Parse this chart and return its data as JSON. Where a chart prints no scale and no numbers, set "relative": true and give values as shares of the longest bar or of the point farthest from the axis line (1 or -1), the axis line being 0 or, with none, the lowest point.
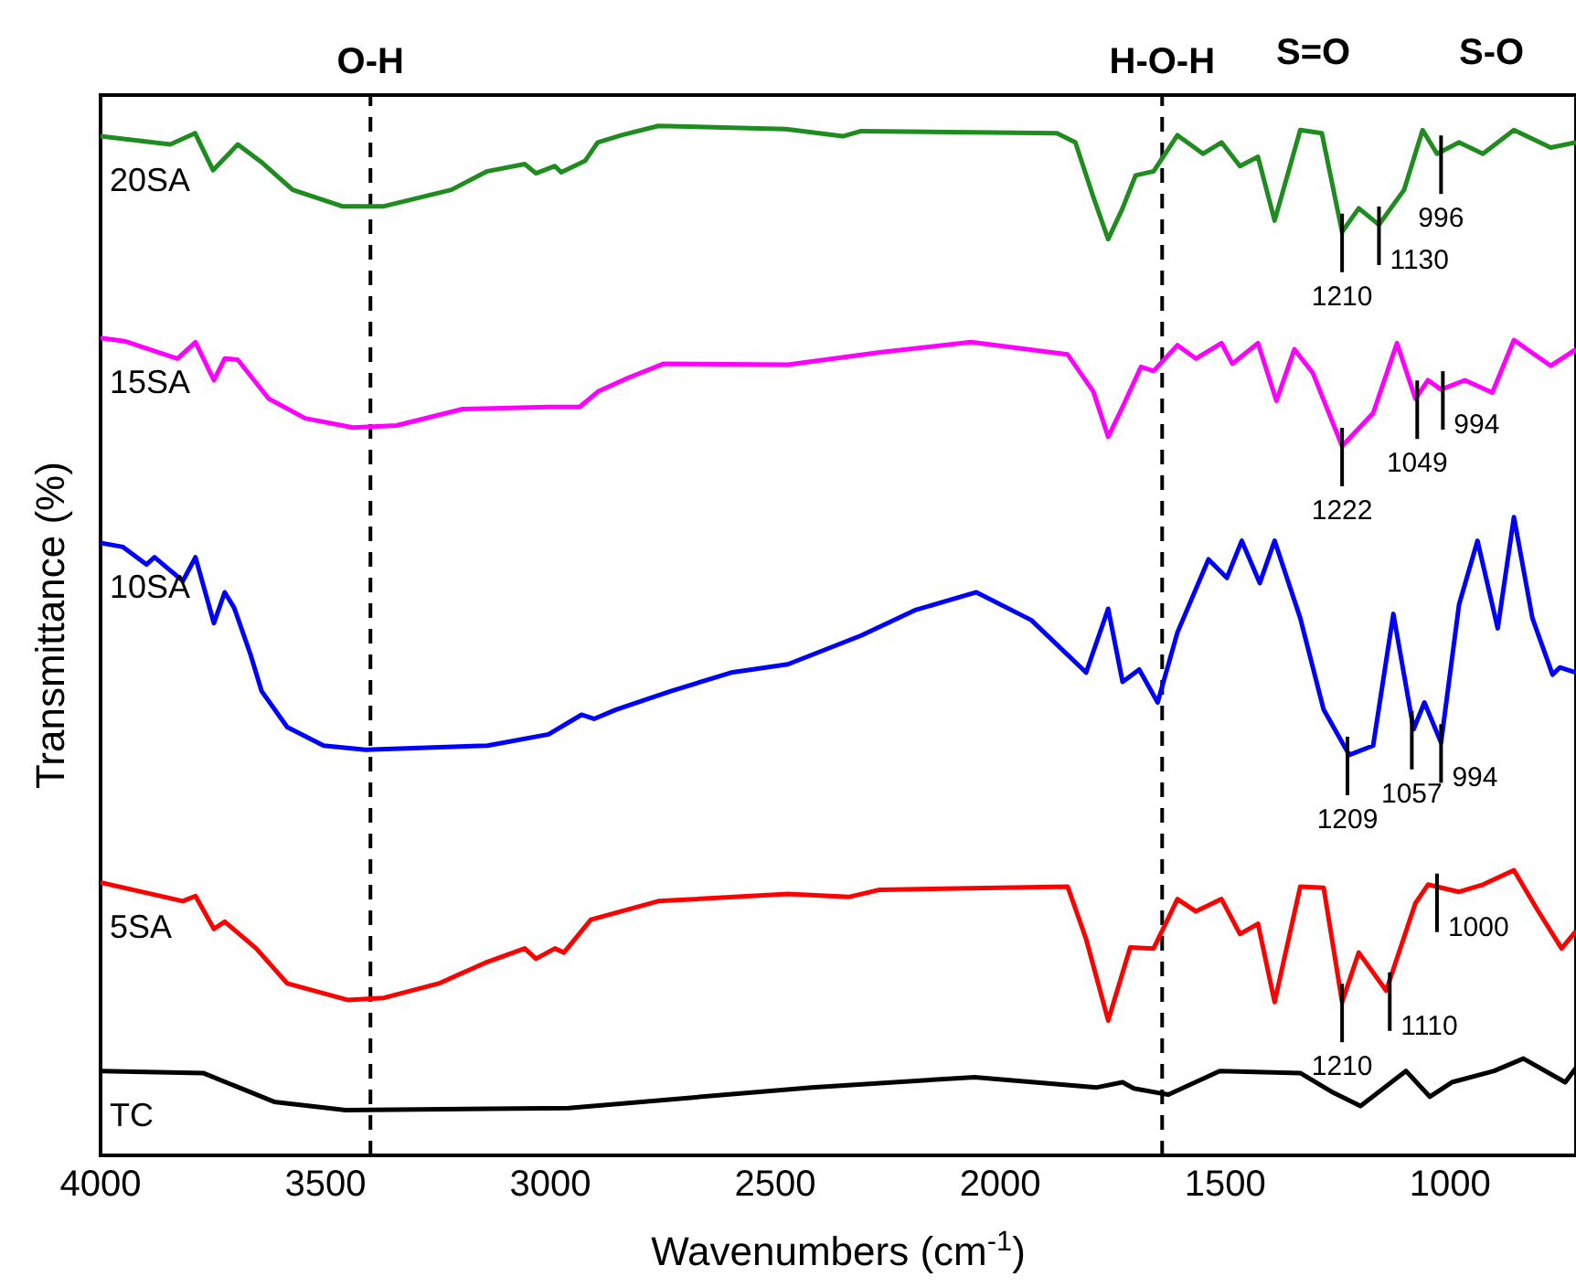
{
  "chart_data": {
    "type": "line",
    "xlabel": "Wavenumbers (cm$^{-1}$)",
    "ylabel": "Transmittance (%)",
    "relative": true,
    "xlim": [
      4000,
      720
    ],
    "xticks": [
      4000,
      3500,
      3000,
      2500,
      2000,
      1500,
      1000
    ],
    "marker": "none",
    "line_style": "solid",
    "ref_lines": [
      {
        "axis": "x",
        "value": 3400,
        "label": "O-H",
        "color": "#000000",
        "line_style": "dashed"
      },
      {
        "axis": "x",
        "value": 1640,
        "label": "H-O-H",
        "color": "#000000",
        "line_style": "dashed"
      }
    ],
    "annotations": [
      "S=O",
      "S-O",
      {
        "text": "1210",
        "x": 1240,
        "y": 0.897
      },
      {
        "text": "1130",
        "x": 1158,
        "y": 0.904
      },
      {
        "text": "996",
        "x": 1020,
        "y": 0.973
      },
      {
        "text": "1222",
        "x": 1240,
        "y": 0.689
      },
      {
        "text": "1049",
        "x": 1073,
        "y": 0.735
      },
      {
        "text": "994",
        "x": 1016,
        "y": 0.744
      },
      {
        "text": "1209",
        "x": 1228,
        "y": 0.389
      },
      {
        "text": "1057",
        "x": 1085,
        "y": 0.414
      },
      {
        "text": "994",
        "x": 1020,
        "y": 0.401
      },
      {
        "text": "1210",
        "x": 1240,
        "y": 0.149
      },
      {
        "text": "1110",
        "x": 1134,
        "y": 0.16
      },
      {
        "text": "1000",
        "x": 1029,
        "y": 0.256
      }
    ],
    "series": [
      {
        "name": "20SA",
        "color": "#1e8c1e",
        "x": [
          4000,
          3845,
          3790,
          3750,
          3695,
          3640,
          3573,
          3463,
          3370,
          3220,
          3140,
          3057,
          3032,
          2990,
          2976,
          2923,
          2895,
          2842,
          2760,
          2476,
          2350,
          2309,
          1874,
          1833,
          1793,
          1760,
          1728,
          1699,
          1659,
          1606,
          1549,
          1508,
          1467,
          1427,
          1390,
          1333,
          1285,
          1240,
          1203,
          1158,
          1102,
          1061,
          1029,
          980,
          927,
          858,
          776,
          720
        ],
        "values": [
          0.99,
          0.982,
          0.993,
          0.957,
          0.982,
          0.964,
          0.938,
          0.922,
          0.922,
          0.938,
          0.956,
          0.963,
          0.954,
          0.961,
          0.955,
          0.966,
          0.984,
          0.991,
          1,
          0.997,
          0.99,
          0.995,
          0.993,
          0.984,
          0.931,
          0.89,
          0.92,
          0.952,
          0.956,
          0.991,
          0.973,
          0.984,
          0.961,
          0.97,
          0.908,
          0.996,
          0.993,
          0.897,
          0.92,
          0.904,
          0.938,
          0.996,
          0.973,
          0.984,
          0.973,
          0.996,
          0.979,
          0.984
        ]
      },
      {
        "name": "15SA",
        "color": "#ff00ff",
        "x": [
          4000,
          3947,
          3829,
          3789,
          3748,
          3724,
          3695,
          3626,
          3545,
          3439,
          3342,
          3195,
          3004,
          2935,
          2894,
          2829,
          2748,
          2472,
          2268,
          2065,
          1850,
          1793,
          1760,
          1728,
          1687,
          1659,
          1606,
          1565,
          1508,
          1484,
          1427,
          1386,
          1346,
          1305,
          1240,
          1171,
          1118,
          1077,
          1049,
          1020,
          967,
          906,
          858,
          776,
          720
        ],
        "values": [
          0.794,
          0.791,
          0.774,
          0.79,
          0.753,
          0.774,
          0.773,
          0.735,
          0.716,
          0.707,
          0.709,
          0.725,
          0.727,
          0.727,
          0.742,
          0.755,
          0.769,
          0.768,
          0.78,
          0.79,
          0.778,
          0.742,
          0.698,
          0.727,
          0.766,
          0.762,
          0.787,
          0.774,
          0.789,
          0.769,
          0.789,
          0.733,
          0.783,
          0.76,
          0.689,
          0.721,
          0.789,
          0.735,
          0.753,
          0.744,
          0.753,
          0.741,
          0.792,
          0.767,
          0.783
        ]
      },
      {
        "name": "10SA",
        "color": "#0000ff",
        "x": [
          4000,
          3950,
          3898,
          3880,
          3817,
          3789,
          3748,
          3724,
          3703,
          3667,
          3642,
          3585,
          3504,
          3411,
          3140,
          3004,
          2931,
          2903,
          2854,
          2732,
          2598,
          2472,
          2309,
          2187,
          2053,
          1931,
          1809,
          1760,
          1728,
          1691,
          1650,
          1606,
          1537,
          1496,
          1463,
          1423,
          1390,
          1333,
          1281,
          1224,
          1171,
          1126,
          1081,
          1057,
          1020,
          980,
          939,
          894,
          858,
          817,
          772,
          756,
          720
        ],
        "values": [
          0.595,
          0.591,
          0.574,
          0.581,
          0.558,
          0.581,
          0.517,
          0.547,
          0.532,
          0.487,
          0.451,
          0.416,
          0.398,
          0.394,
          0.398,
          0.409,
          0.428,
          0.424,
          0.433,
          0.451,
          0.469,
          0.477,
          0.505,
          0.53,
          0.547,
          0.52,
          0.469,
          0.531,
          0.46,
          0.472,
          0.44,
          0.508,
          0.579,
          0.561,
          0.597,
          0.556,
          0.597,
          0.522,
          0.433,
          0.389,
          0.398,
          0.526,
          0.414,
          0.44,
          0.401,
          0.535,
          0.597,
          0.512,
          0.62,
          0.522,
          0.467,
          0.474,
          0.469
        ]
      },
      {
        "name": "5SA",
        "color": "#ff0000",
        "x": [
          4000,
          3817,
          3789,
          3748,
          3724,
          3654,
          3585,
          3451,
          3370,
          3248,
          3140,
          3057,
          3032,
          2990,
          2970,
          2910,
          2760,
          2472,
          2337,
          2268,
          1850,
          1809,
          1760,
          1711,
          1659,
          1606,
          1565,
          1508,
          1467,
          1427,
          1390,
          1333,
          1281,
          1240,
          1203,
          1142,
          1077,
          1049,
          980,
          927,
          858,
          805,
          752,
          720
        ],
        "values": [
          0.265,
          0.247,
          0.252,
          0.22,
          0.227,
          0.201,
          0.167,
          0.151,
          0.153,
          0.167,
          0.188,
          0.201,
          0.191,
          0.201,
          0.197,
          0.229,
          0.247,
          0.254,
          0.251,
          0.258,
          0.261,
          0.21,
          0.131,
          0.202,
          0.201,
          0.249,
          0.237,
          0.249,
          0.215,
          0.225,
          0.149,
          0.261,
          0.26,
          0.149,
          0.197,
          0.16,
          0.245,
          0.263,
          0.256,
          0.263,
          0.277,
          0.238,
          0.201,
          0.218
        ]
      },
      {
        "name": "TC",
        "color": "#000000",
        "x": [
          4000,
          3772,
          3614,
          3455,
          2959,
          2419,
          2057,
          1785,
          1728,
          1703,
          1626,
          1512,
          1333,
          1264,
          1199,
          1098,
          1045,
          996,
          902,
          837,
          744,
          720
        ],
        "values": [
          0.082,
          0.08,
          0.052,
          0.044,
          0.046,
          0.066,
          0.076,
          0.066,
          0.071,
          0.065,
          0.059,
          0.082,
          0.08,
          0.062,
          0.048,
          0.082,
          0.057,
          0.071,
          0.082,
          0.094,
          0.071,
          0.085
        ]
      }
    ]
  }
}
